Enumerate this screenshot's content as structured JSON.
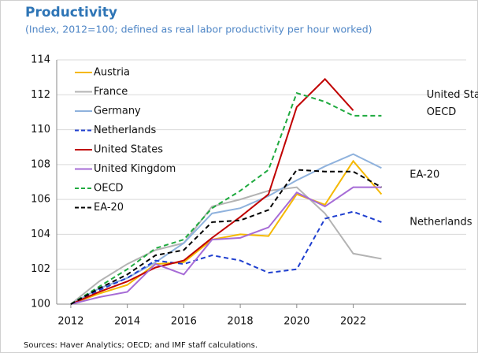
{
  "chart_data": {
    "type": "line",
    "title": "Productivity",
    "subtitle": "(Index, 2012=100; defined as real labor productivity per hour worked)",
    "source": "Sources: Haver Analytics; OECD; and IMF staff calculations.",
    "x": [
      2012,
      2013,
      2014,
      2015,
      2016,
      2017,
      2018,
      2019,
      2020,
      2021,
      2022,
      2023
    ],
    "xlim": [
      2011.5,
      2026
    ],
    "xticks": [
      2012,
      2014,
      2016,
      2018,
      2020,
      2022
    ],
    "ylim": [
      100,
      114
    ],
    "yticks": [
      100,
      102,
      104,
      106,
      108,
      110,
      112,
      114
    ],
    "grid": true,
    "legend": "upper left",
    "series": [
      {
        "name": "Austria",
        "color": "#f5b800",
        "dash": false,
        "values": [
          100,
          100.6,
          101.1,
          102.3,
          102.4,
          103.7,
          104.0,
          103.9,
          106.3,
          105.7,
          108.2,
          106.3
        ]
      },
      {
        "name": "France",
        "color": "#b3b3b3",
        "dash": false,
        "values": [
          100,
          101.3,
          102.3,
          103.1,
          103.5,
          105.6,
          106.0,
          106.5,
          106.7,
          105.2,
          102.9,
          102.6
        ]
      },
      {
        "name": "Germany",
        "color": "#8fb2dd",
        "dash": false,
        "values": [
          100,
          100.9,
          101.5,
          102.4,
          103.5,
          105.2,
          105.5,
          106.2,
          107.1,
          107.9,
          108.6,
          107.8
        ]
      },
      {
        "name": "Netherlands",
        "color": "#1f3fcf",
        "dash": true,
        "values": [
          100,
          100.8,
          101.5,
          102.5,
          102.3,
          102.8,
          102.5,
          101.8,
          102.0,
          104.9,
          105.3,
          104.7
        ]
      },
      {
        "name": "United States",
        "color": "#c00000",
        "dash": false,
        "values": [
          100,
          100.7,
          101.3,
          102.1,
          102.5,
          103.8,
          105.0,
          106.3,
          111.3,
          112.9,
          111.1,
          null
        ]
      },
      {
        "name": "United Kingdom",
        "color": "#a66bd6",
        "dash": false,
        "values": [
          100,
          100.4,
          100.7,
          102.3,
          101.7,
          103.7,
          103.8,
          104.4,
          106.4,
          105.6,
          106.7,
          106.7
        ]
      },
      {
        "name": "OECD",
        "color": "#1faa3f",
        "dash": true,
        "values": [
          100,
          101.0,
          102.0,
          103.2,
          103.7,
          105.5,
          106.5,
          107.7,
          112.1,
          111.6,
          110.8,
          110.8
        ]
      },
      {
        "name": "EA-20",
        "color": "#000000",
        "dash": true,
        "values": [
          100,
          100.9,
          101.7,
          102.8,
          103.1,
          104.7,
          104.8,
          105.4,
          107.7,
          107.6,
          107.6,
          106.7
        ]
      }
    ],
    "annotations": [
      {
        "text": "United States",
        "x": 2024.6,
        "y": 112.0
      },
      {
        "text": "OECD",
        "x": 2024.6,
        "y": 111.0
      },
      {
        "text": "EA-20",
        "x": 2024.0,
        "y": 107.4
      },
      {
        "text": "Netherlands",
        "x": 2024.0,
        "y": 104.7
      }
    ]
  }
}
